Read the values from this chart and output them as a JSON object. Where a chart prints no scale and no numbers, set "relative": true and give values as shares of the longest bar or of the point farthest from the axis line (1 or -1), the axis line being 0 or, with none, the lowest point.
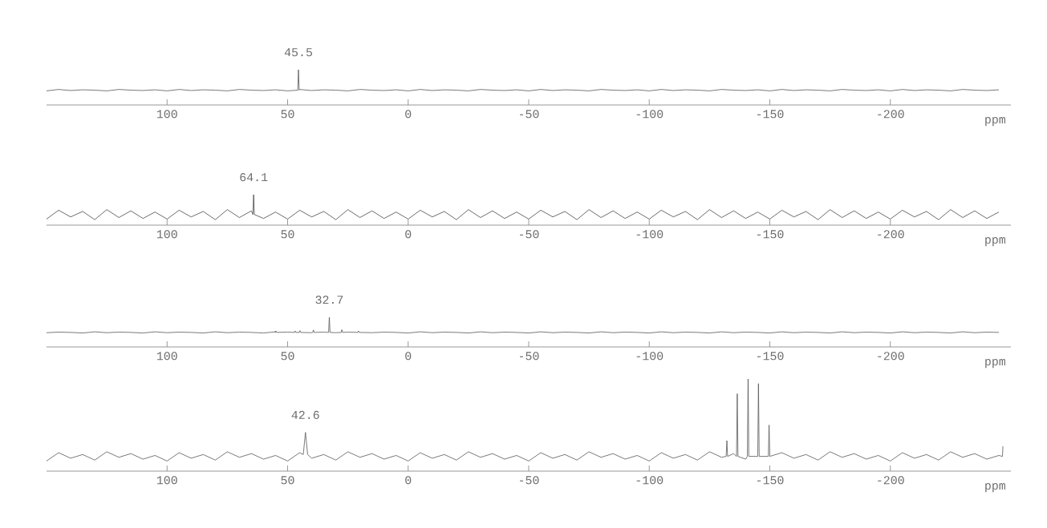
{
  "chart_data": [
    {
      "type": "line",
      "relative": true,
      "xlabel": "ppm",
      "xlim": [
        150,
        -250
      ],
      "xticks": [
        100,
        50,
        0,
        -50,
        -100,
        -150,
        -200
      ],
      "annotations": [
        {
          "text": "45.5",
          "x": 45.5,
          "y": 1
        }
      ],
      "series": [
        {
          "color": "#555555",
          "x": [
            150,
            145,
            140,
            135,
            130,
            125,
            120,
            115,
            110,
            105,
            100,
            95,
            90,
            85,
            80,
            75,
            70,
            65,
            60,
            55,
            50,
            45.8,
            45.5,
            45.2,
            45,
            40,
            35,
            30,
            25,
            20,
            15,
            10,
            5,
            0,
            -5,
            -10,
            -15,
            -20,
            -25,
            -30,
            -35,
            -40,
            -45,
            -50,
            -55,
            -60,
            -65,
            -70,
            -75,
            -80,
            -85,
            -90,
            -95,
            -100,
            -105,
            -110,
            -115,
            -120,
            -125,
            -130,
            -135,
            -140,
            -145,
            -150,
            -155,
            -160,
            -165,
            -170,
            -175,
            -180,
            -185,
            -190,
            -195,
            -200,
            -205,
            -210,
            -215,
            -220,
            -225,
            -230,
            -235,
            -240,
            -245
          ],
          "values": [
            0.4,
            0.44,
            0.41,
            0.43,
            0.42,
            0.4,
            0.44,
            0.42,
            0.41,
            0.43,
            0.4,
            0.44,
            0.41,
            0.43,
            0.42,
            0.4,
            0.44,
            0.42,
            0.41,
            0.43,
            0.4,
            0.42,
            1,
            0.42,
            0.44,
            0.41,
            0.43,
            0.42,
            0.4,
            0.44,
            0.42,
            0.41,
            0.43,
            0.4,
            0.44,
            0.41,
            0.43,
            0.42,
            0.4,
            0.44,
            0.42,
            0.41,
            0.43,
            0.4,
            0.44,
            0.41,
            0.43,
            0.42,
            0.4,
            0.44,
            0.42,
            0.41,
            0.43,
            0.4,
            0.44,
            0.41,
            0.43,
            0.42,
            0.4,
            0.44,
            0.42,
            0.41,
            0.43,
            0.4,
            0.44,
            0.41,
            0.43,
            0.42,
            0.4,
            0.44,
            0.42,
            0.41,
            0.43,
            0.4,
            0.44,
            0.41,
            0.43,
            0.42,
            0.4,
            0.44,
            0.42,
            0.41,
            0.43
          ]
        }
      ]
    },
    {
      "type": "line",
      "relative": true,
      "xlabel": "ppm",
      "xlim": [
        150,
        -250
      ],
      "xticks": [
        100,
        50,
        0,
        -50,
        -100,
        -150,
        -200
      ],
      "annotations": [
        {
          "text": "64.1",
          "x": 64.1,
          "y": 1
        }
      ],
      "series": [
        {
          "color": "#444444",
          "x": [
            150,
            145,
            140,
            135,
            130,
            125,
            120,
            115,
            110,
            105,
            100,
            95,
            90,
            85,
            80,
            75,
            70,
            65,
            64.4,
            64.1,
            63.8,
            60,
            55,
            50,
            45,
            40,
            35,
            30,
            25,
            20,
            15,
            10,
            5,
            0,
            -5,
            -10,
            -15,
            -20,
            -25,
            -30,
            -35,
            -40,
            -45,
            -50,
            -55,
            -60,
            -65,
            -70,
            -75,
            -80,
            -85,
            -90,
            -95,
            -100,
            -105,
            -110,
            -115,
            -120,
            -125,
            -130,
            -135,
            -140,
            -145,
            -150,
            -155,
            -160,
            -165,
            -170,
            -175,
            -180,
            -185,
            -190,
            -195,
            -200,
            -205,
            -210,
            -215,
            -220,
            -225,
            -230,
            -235,
            -240,
            -245
          ],
          "values": [
            0.2,
            0.49,
            0.27,
            0.45,
            0.18,
            0.51,
            0.25,
            0.47,
            0.22,
            0.43,
            0.2,
            0.49,
            0.27,
            0.45,
            0.18,
            0.51,
            0.25,
            0.47,
            0.35,
            1,
            0.35,
            0.22,
            0.43,
            0.2,
            0.49,
            0.27,
            0.45,
            0.18,
            0.51,
            0.25,
            0.47,
            0.22,
            0.43,
            0.2,
            0.49,
            0.27,
            0.45,
            0.18,
            0.51,
            0.25,
            0.47,
            0.22,
            0.43,
            0.2,
            0.49,
            0.27,
            0.45,
            0.18,
            0.51,
            0.25,
            0.47,
            0.22,
            0.43,
            0.2,
            0.49,
            0.27,
            0.45,
            0.18,
            0.51,
            0.25,
            0.47,
            0.22,
            0.43,
            0.2,
            0.49,
            0.27,
            0.45,
            0.18,
            0.51,
            0.25,
            0.47,
            0.22,
            0.43,
            0.2,
            0.49,
            0.27,
            0.45,
            0.18,
            0.51,
            0.25,
            0.47,
            0.22,
            0.43
          ]
        }
      ]
    },
    {
      "type": "line",
      "relative": true,
      "xlabel": "ppm",
      "xlim": [
        150,
        -250
      ],
      "xticks": [
        100,
        50,
        0,
        -50,
        -100,
        -150,
        -200
      ],
      "annotations": [
        {
          "text": "32.7",
          "x": 32.7,
          "y": 1
        }
      ],
      "series": [
        {
          "color": "#555555",
          "x": [
            150,
            145,
            140,
            135,
            130,
            125,
            120,
            115,
            110,
            105,
            100,
            95,
            90,
            85,
            80,
            75,
            70,
            65,
            60,
            55,
            55.2,
            54.9,
            54.6,
            50,
            47.2,
            46.9,
            46.6,
            45.2,
            44.9,
            44.6,
            40,
            39.6,
            39.3,
            39.0,
            35,
            33.0,
            32.7,
            32.4,
            30,
            27.8,
            27.5,
            27.2,
            25,
            20.9,
            20.6,
            20.3,
            20,
            15,
            10,
            5,
            0,
            -5,
            -10,
            -15,
            -20,
            -25,
            -30,
            -35,
            -40,
            -45,
            -50,
            -55,
            -60,
            -65,
            -70,
            -75,
            -80,
            -85,
            -90,
            -95,
            -100,
            -105,
            -110,
            -115,
            -120,
            -125,
            -130,
            -135,
            -140,
            -145,
            -150,
            -155,
            -160,
            -165,
            -170,
            -175,
            -180,
            -185,
            -190,
            -195,
            -200,
            -205,
            -210,
            -215,
            -220,
            -225,
            -230,
            -235,
            -240,
            -245
          ],
          "values": [
            0.48,
            0.5,
            0.49,
            0.47,
            0.51,
            0.48,
            0.5,
            0.49,
            0.47,
            0.51,
            0.48,
            0.5,
            0.49,
            0.47,
            0.51,
            0.48,
            0.5,
            0.49,
            0.47,
            0.51,
            0.49,
            0.54,
            0.49,
            0.5,
            0.49,
            0.54,
            0.49,
            0.49,
            0.55,
            0.49,
            0.48,
            0.49,
            0.57,
            0.49,
            0.5,
            0.49,
            1,
            0.49,
            0.48,
            0.49,
            0.58,
            0.49,
            0.5,
            0.49,
            0.54,
            0.49,
            0.49,
            0.48,
            0.5,
            0.49,
            0.47,
            0.51,
            0.48,
            0.5,
            0.49,
            0.47,
            0.51,
            0.48,
            0.5,
            0.49,
            0.47,
            0.51,
            0.48,
            0.5,
            0.49,
            0.47,
            0.51,
            0.48,
            0.5,
            0.49,
            0.47,
            0.51,
            0.48,
            0.5,
            0.49,
            0.47,
            0.51,
            0.48,
            0.5,
            0.49,
            0.47,
            0.51,
            0.48,
            0.5,
            0.49,
            0.47,
            0.51,
            0.48,
            0.5,
            0.49,
            0.47,
            0.51,
            0.48,
            0.5,
            0.49,
            0.47,
            0.51,
            0.48,
            0.5,
            0.49
          ]
        }
      ]
    },
    {
      "type": "line",
      "relative": true,
      "xlabel": "ppm",
      "xlim": [
        150,
        -250
      ],
      "xticks": [
        100,
        50,
        0,
        -50,
        -100,
        -150,
        -200
      ],
      "annotations": [
        {
          "text": "42.6",
          "x": 42.6,
          "y": 0.42
        }
      ],
      "series": [
        {
          "color": "#555555",
          "x": [
            150,
            145,
            140,
            135,
            130,
            125,
            120,
            115,
            110,
            105,
            100,
            95,
            90,
            85,
            80,
            75,
            70,
            65,
            60,
            55,
            50,
            45,
            43.5,
            42.6,
            41.7,
            40,
            35,
            30,
            25,
            20,
            15,
            10,
            5,
            0,
            -5,
            -10,
            -15,
            -20,
            -25,
            -30,
            -35,
            -40,
            -45,
            -50,
            -55,
            -60,
            -65,
            -70,
            -75,
            -80,
            -85,
            -90,
            -95,
            -100,
            -105,
            -110,
            -115,
            -120,
            -125,
            -130,
            -131.9,
            -132.2,
            -132.5,
            -135,
            -136.2,
            -136.5,
            -136.8,
            -140,
            -140.7,
            -141,
            -141.3,
            -145,
            -145.3,
            -145.6,
            -149.4,
            -149.7,
            -150,
            -155,
            -160,
            -165,
            -170,
            -175,
            -180,
            -185,
            -190,
            -195,
            -200,
            -205,
            -210,
            -215,
            -220,
            -225,
            -230,
            -235,
            -240,
            -245,
            -246.5,
            -246.7
          ],
          "values": [
            0.11,
            0.2,
            0.14,
            0.18,
            0.12,
            0.21,
            0.15,
            0.19,
            0.13,
            0.17,
            0.11,
            0.2,
            0.14,
            0.18,
            0.12,
            0.21,
            0.15,
            0.19,
            0.13,
            0.17,
            0.11,
            0.2,
            0.18,
            0.42,
            0.18,
            0.14,
            0.18,
            0.12,
            0.21,
            0.15,
            0.19,
            0.13,
            0.17,
            0.11,
            0.2,
            0.14,
            0.18,
            0.12,
            0.21,
            0.15,
            0.19,
            0.13,
            0.17,
            0.11,
            0.2,
            0.14,
            0.18,
            0.12,
            0.21,
            0.15,
            0.19,
            0.13,
            0.17,
            0.11,
            0.2,
            0.14,
            0.18,
            0.12,
            0.21,
            0.15,
            0.16,
            0.33,
            0.16,
            0.19,
            0.16,
            0.84,
            0.16,
            0.13,
            0.16,
            1,
            0.16,
            0.16,
            0.95,
            0.16,
            0.16,
            0.5,
            0.16,
            0.2,
            0.14,
            0.18,
            0.12,
            0.21,
            0.15,
            0.19,
            0.13,
            0.17,
            0.11,
            0.2,
            0.14,
            0.18,
            0.12,
            0.21,
            0.15,
            0.19,
            0.13,
            0.17,
            0.16,
            0.27
          ]
        }
      ]
    }
  ]
}
